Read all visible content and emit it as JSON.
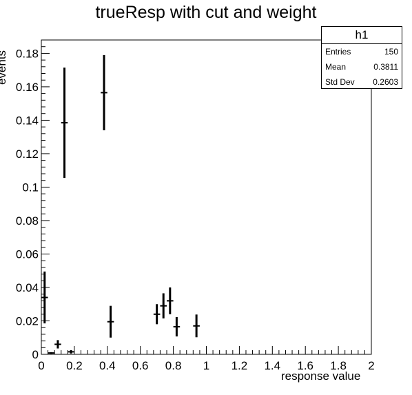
{
  "chart_data": {
    "type": "scatter",
    "title": "trueResp with cut and weight",
    "xlabel": "response value",
    "ylabel": "events",
    "xlim": [
      0,
      2
    ],
    "ylim": [
      0,
      0.188
    ],
    "x_ticks": [
      "0",
      "0.2",
      "0.4",
      "0.6",
      "0.8",
      "1",
      "1.2",
      "1.4",
      "1.6",
      "1.8",
      "2"
    ],
    "y_ticks": [
      "0",
      "0.02",
      "0.04",
      "0.06",
      "0.08",
      "0.1",
      "0.12",
      "0.14",
      "0.16",
      "0.18"
    ],
    "grid": false,
    "series": [
      {
        "points": [
          {
            "x": 0.02,
            "y": 0.034,
            "err": 0.0155
          },
          {
            "x": 0.06,
            "y": 0.0008,
            "err": 0.0005
          },
          {
            "x": 0.1,
            "y": 0.006,
            "err": 0.0025
          },
          {
            "x": 0.14,
            "y": 0.1385,
            "err": 0.033
          },
          {
            "x": 0.18,
            "y": 0.0015,
            "err": 0.001
          },
          {
            "x": 0.38,
            "y": 0.1565,
            "err": 0.0225
          },
          {
            "x": 0.42,
            "y": 0.0195,
            "err": 0.0095
          },
          {
            "x": 0.7,
            "y": 0.024,
            "err": 0.006
          },
          {
            "x": 0.74,
            "y": 0.029,
            "err": 0.0075
          },
          {
            "x": 0.78,
            "y": 0.032,
            "err": 0.008
          },
          {
            "x": 0.82,
            "y": 0.0165,
            "err": 0.0058
          },
          {
            "x": 0.94,
            "y": 0.017,
            "err": 0.0068
          }
        ],
        "bin_width": 0.04,
        "color": "#000000"
      }
    ],
    "stats_box": {
      "name": "h1",
      "entries_label": "Entries",
      "entries": "150",
      "mean_label": "Mean",
      "mean": "0.3811",
      "stddev_label": "Std Dev",
      "stddev": "0.2603"
    }
  }
}
